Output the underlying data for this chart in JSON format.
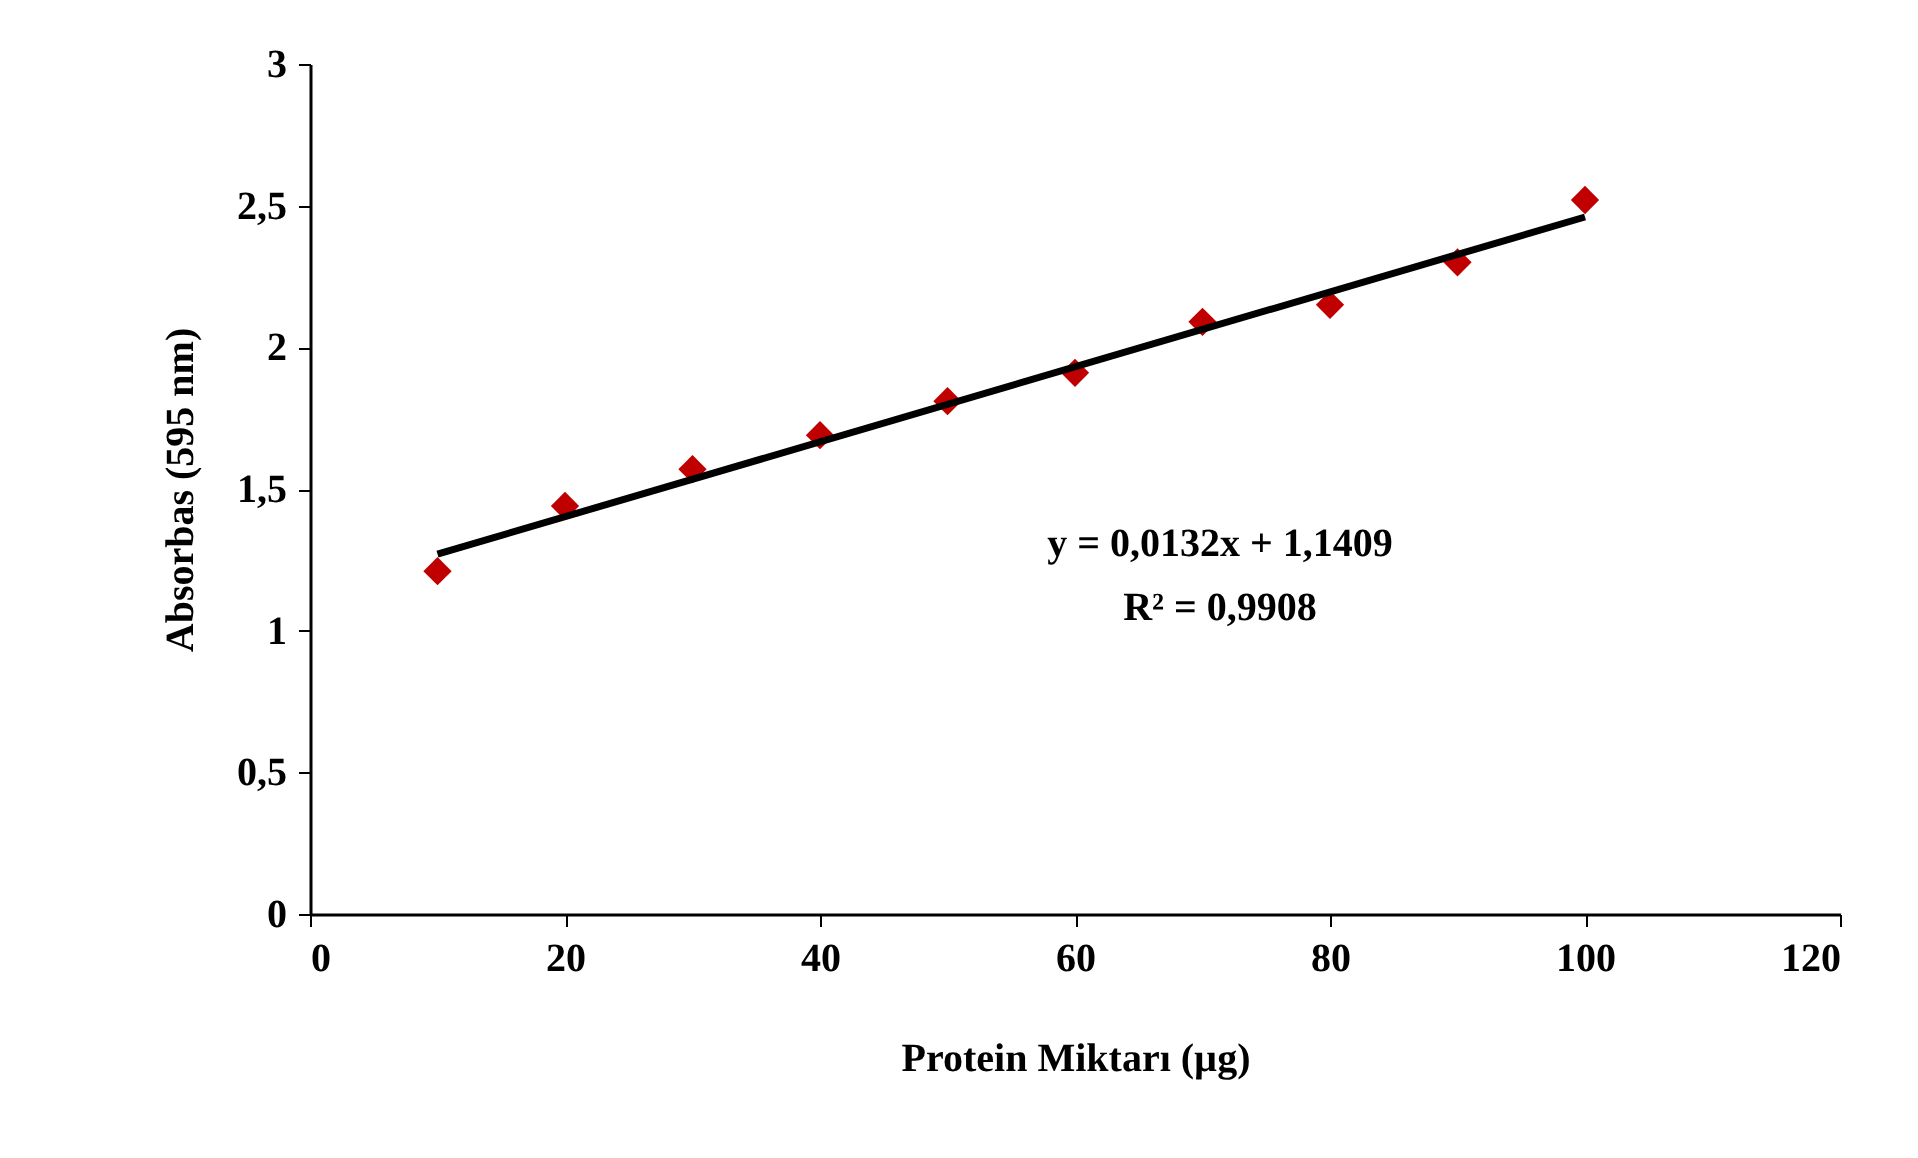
{
  "chart_data": {
    "type": "scatter",
    "xlabel": "Protein Miktarı (µg)",
    "ylabel": "Absorbas (595 nm)",
    "x": [
      10,
      20,
      30,
      40,
      50,
      60,
      70,
      80,
      90,
      100
    ],
    "series": [
      {
        "color": "#c00000",
        "marker": "diamond",
        "values": [
          1.21,
          1.44,
          1.57,
          1.69,
          1.81,
          1.91,
          2.09,
          2.15,
          2.3,
          2.52
        ]
      },
      {
        "type": "line",
        "color": "#000000",
        "x": [
          10,
          100
        ],
        "values": [
          1.27,
          2.46
        ]
      }
    ],
    "xlim": [
      0,
      120
    ],
    "xticks": [
      0,
      20,
      40,
      60,
      80,
      100,
      120
    ],
    "ylim": [
      0,
      3
    ],
    "yticks": [
      0,
      {
        "value": 0.5,
        "label": "0,5"
      },
      1,
      {
        "value": 1.5,
        "label": "1,5"
      },
      2,
      {
        "value": 2.5,
        "label": "2,5"
      },
      3
    ],
    "annotations": [
      "y = 0,0132x + 1,1409",
      "R² = 0,9908"
    ],
    "grid": false
  }
}
